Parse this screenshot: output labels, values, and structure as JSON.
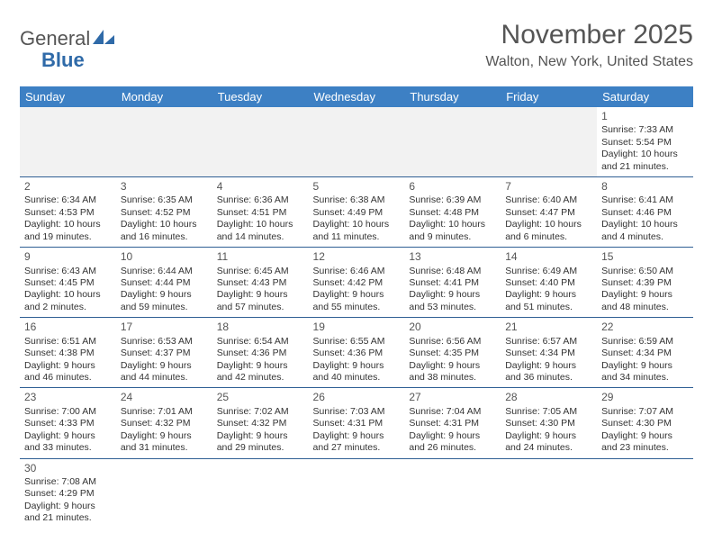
{
  "logo": {
    "textGray": "General",
    "textBlue": "Blue"
  },
  "title": "November 2025",
  "location": "Walton, New York, United States",
  "colors": {
    "headerBg": "#3d80c4",
    "headerText": "#ffffff",
    "rowBorder": "#2f5f94",
    "blankBg": "#f2f2f2",
    "bodyText": "#333333",
    "titleText": "#555555"
  },
  "dayHeaders": [
    "Sunday",
    "Monday",
    "Tuesday",
    "Wednesday",
    "Thursday",
    "Friday",
    "Saturday"
  ],
  "weeks": [
    [
      null,
      null,
      null,
      null,
      null,
      null,
      {
        "n": "1",
        "sr": "Sunrise: 7:33 AM",
        "ss": "Sunset: 5:54 PM",
        "dl": "Daylight: 10 hours and 21 minutes."
      }
    ],
    [
      {
        "n": "2",
        "sr": "Sunrise: 6:34 AM",
        "ss": "Sunset: 4:53 PM",
        "dl": "Daylight: 10 hours and 19 minutes."
      },
      {
        "n": "3",
        "sr": "Sunrise: 6:35 AM",
        "ss": "Sunset: 4:52 PM",
        "dl": "Daylight: 10 hours and 16 minutes."
      },
      {
        "n": "4",
        "sr": "Sunrise: 6:36 AM",
        "ss": "Sunset: 4:51 PM",
        "dl": "Daylight: 10 hours and 14 minutes."
      },
      {
        "n": "5",
        "sr": "Sunrise: 6:38 AM",
        "ss": "Sunset: 4:49 PM",
        "dl": "Daylight: 10 hours and 11 minutes."
      },
      {
        "n": "6",
        "sr": "Sunrise: 6:39 AM",
        "ss": "Sunset: 4:48 PM",
        "dl": "Daylight: 10 hours and 9 minutes."
      },
      {
        "n": "7",
        "sr": "Sunrise: 6:40 AM",
        "ss": "Sunset: 4:47 PM",
        "dl": "Daylight: 10 hours and 6 minutes."
      },
      {
        "n": "8",
        "sr": "Sunrise: 6:41 AM",
        "ss": "Sunset: 4:46 PM",
        "dl": "Daylight: 10 hours and 4 minutes."
      }
    ],
    [
      {
        "n": "9",
        "sr": "Sunrise: 6:43 AM",
        "ss": "Sunset: 4:45 PM",
        "dl": "Daylight: 10 hours and 2 minutes."
      },
      {
        "n": "10",
        "sr": "Sunrise: 6:44 AM",
        "ss": "Sunset: 4:44 PM",
        "dl": "Daylight: 9 hours and 59 minutes."
      },
      {
        "n": "11",
        "sr": "Sunrise: 6:45 AM",
        "ss": "Sunset: 4:43 PM",
        "dl": "Daylight: 9 hours and 57 minutes."
      },
      {
        "n": "12",
        "sr": "Sunrise: 6:46 AM",
        "ss": "Sunset: 4:42 PM",
        "dl": "Daylight: 9 hours and 55 minutes."
      },
      {
        "n": "13",
        "sr": "Sunrise: 6:48 AM",
        "ss": "Sunset: 4:41 PM",
        "dl": "Daylight: 9 hours and 53 minutes."
      },
      {
        "n": "14",
        "sr": "Sunrise: 6:49 AM",
        "ss": "Sunset: 4:40 PM",
        "dl": "Daylight: 9 hours and 51 minutes."
      },
      {
        "n": "15",
        "sr": "Sunrise: 6:50 AM",
        "ss": "Sunset: 4:39 PM",
        "dl": "Daylight: 9 hours and 48 minutes."
      }
    ],
    [
      {
        "n": "16",
        "sr": "Sunrise: 6:51 AM",
        "ss": "Sunset: 4:38 PM",
        "dl": "Daylight: 9 hours and 46 minutes."
      },
      {
        "n": "17",
        "sr": "Sunrise: 6:53 AM",
        "ss": "Sunset: 4:37 PM",
        "dl": "Daylight: 9 hours and 44 minutes."
      },
      {
        "n": "18",
        "sr": "Sunrise: 6:54 AM",
        "ss": "Sunset: 4:36 PM",
        "dl": "Daylight: 9 hours and 42 minutes."
      },
      {
        "n": "19",
        "sr": "Sunrise: 6:55 AM",
        "ss": "Sunset: 4:36 PM",
        "dl": "Daylight: 9 hours and 40 minutes."
      },
      {
        "n": "20",
        "sr": "Sunrise: 6:56 AM",
        "ss": "Sunset: 4:35 PM",
        "dl": "Daylight: 9 hours and 38 minutes."
      },
      {
        "n": "21",
        "sr": "Sunrise: 6:57 AM",
        "ss": "Sunset: 4:34 PM",
        "dl": "Daylight: 9 hours and 36 minutes."
      },
      {
        "n": "22",
        "sr": "Sunrise: 6:59 AM",
        "ss": "Sunset: 4:34 PM",
        "dl": "Daylight: 9 hours and 34 minutes."
      }
    ],
    [
      {
        "n": "23",
        "sr": "Sunrise: 7:00 AM",
        "ss": "Sunset: 4:33 PM",
        "dl": "Daylight: 9 hours and 33 minutes."
      },
      {
        "n": "24",
        "sr": "Sunrise: 7:01 AM",
        "ss": "Sunset: 4:32 PM",
        "dl": "Daylight: 9 hours and 31 minutes."
      },
      {
        "n": "25",
        "sr": "Sunrise: 7:02 AM",
        "ss": "Sunset: 4:32 PM",
        "dl": "Daylight: 9 hours and 29 minutes."
      },
      {
        "n": "26",
        "sr": "Sunrise: 7:03 AM",
        "ss": "Sunset: 4:31 PM",
        "dl": "Daylight: 9 hours and 27 minutes."
      },
      {
        "n": "27",
        "sr": "Sunrise: 7:04 AM",
        "ss": "Sunset: 4:31 PM",
        "dl": "Daylight: 9 hours and 26 minutes."
      },
      {
        "n": "28",
        "sr": "Sunrise: 7:05 AM",
        "ss": "Sunset: 4:30 PM",
        "dl": "Daylight: 9 hours and 24 minutes."
      },
      {
        "n": "29",
        "sr": "Sunrise: 7:07 AM",
        "ss": "Sunset: 4:30 PM",
        "dl": "Daylight: 9 hours and 23 minutes."
      }
    ],
    [
      {
        "n": "30",
        "sr": "Sunrise: 7:08 AM",
        "ss": "Sunset: 4:29 PM",
        "dl": "Daylight: 9 hours and 21 minutes."
      },
      null,
      null,
      null,
      null,
      null,
      null
    ]
  ]
}
